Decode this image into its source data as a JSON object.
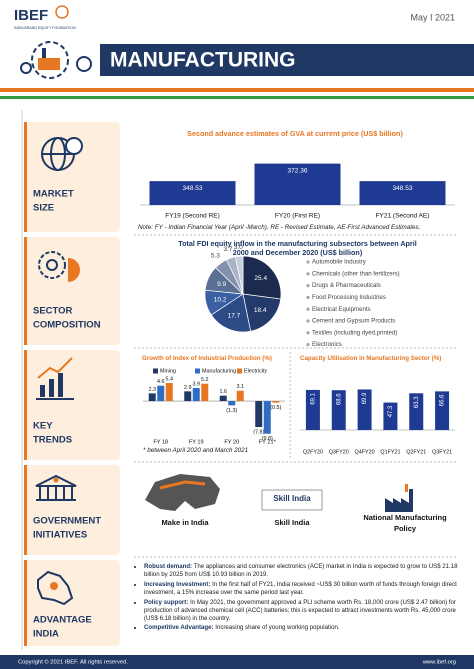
{
  "header": {
    "logo": "IBEF",
    "logo_sub": "INDIA BRAND EQUITY FOUNDATION",
    "date": "May I 2021",
    "title": "MANUFACTURING"
  },
  "sections": [
    {
      "label": [
        "MARKET",
        "SIZE"
      ]
    },
    {
      "label": [
        "SECTOR",
        "COMPOSITION"
      ]
    },
    {
      "label": [
        "KEY",
        "TRENDS"
      ]
    },
    {
      "label": [
        "GOVERNMENT",
        "INITIATIVES"
      ]
    },
    {
      "label": [
        "ADVANTAGE",
        "INDIA"
      ]
    }
  ],
  "chart_data": [
    {
      "type": "bar",
      "title": "Second advance estimates of GVA at current price (US$ billion)",
      "categories": [
        "FY19 (Second RE)",
        "FY20 (First RE)",
        "FY21 (Second AE)"
      ],
      "values": [
        348.53,
        372.36,
        348.53
      ],
      "color": "#1f3a93",
      "ylim": [
        316,
        380
      ],
      "note": "Note: FY - Indian Financial Year (April -March), RE - Revised Estimate, AE-First Advanced Estimates."
    },
    {
      "type": "pie",
      "title": "Total FDI equity inflow in the manufacturing subsectors between April 2000 and December 2020 (US$ billion)",
      "labels": [
        "Automobile Industry",
        "Chemicals (other than fertilizers)",
        "Drugs & Pharmaceuticals",
        "Food Processing Industries",
        "Electrical Equipments",
        "Cement and Gypsum Products",
        "Textiles (including dyed,printed)",
        "Electronics"
      ],
      "values": [
        25.4,
        18.4,
        17.7,
        10.2,
        9.9,
        5.3,
        3.7,
        3
      ],
      "value_labels": [
        "25.4",
        "18.4",
        "17.7",
        "10.2",
        "9.9",
        "5.3",
        "3.7",
        "3.0"
      ],
      "colors": [
        "#1b2a4e",
        "#233a6b",
        "#2c4a86",
        "#3a5fa3",
        "#5a6f95",
        "#8391ad",
        "#a9b3c8",
        "#c8cfdc"
      ]
    },
    {
      "type": "bar",
      "title": "Growth of Index of Industrial Production (%)",
      "categories": [
        "FY 18",
        "FY 19",
        "FY 20",
        "FY 21*"
      ],
      "series": [
        {
          "name": "Mining",
          "color": "#1f3864",
          "values": [
            2.3,
            2.9,
            1.6,
            -7.8
          ],
          "value_labels": [
            "2.3",
            "2.9",
            "1.6",
            "(7.8)"
          ]
        },
        {
          "name": "Manufacturing",
          "color": "#2f6dc4",
          "values": [
            4.6,
            3.9,
            -1.3,
            -9.8
          ],
          "value_labels": [
            "4.6",
            "3.9",
            "(1.3)",
            "(9.8)"
          ]
        },
        {
          "name": "Electricity",
          "color": "#e87722",
          "values": [
            5.4,
            5.2,
            3.1,
            -0.5
          ],
          "value_labels": [
            "5.4",
            "5.2",
            "3.1",
            "(0.5)"
          ]
        }
      ],
      "ylim": [
        -11,
        7
      ],
      "note": "* between April 2020 and March 2021"
    },
    {
      "type": "bar",
      "title": "Capacity Utilisation in Manufacturing Sector (%)",
      "categories": [
        "Q2FY20",
        "Q3FY20",
        "Q4FY20",
        "Q1FY21",
        "Q2FY21",
        "Q3FY21"
      ],
      "values": [
        69.1,
        68.6,
        69.9,
        47.3,
        63.3,
        66.6
      ],
      "color": "#1f3a93",
      "ylim": [
        0,
        75
      ]
    }
  ],
  "initiatives": [
    "Make in India",
    "Skill India",
    "National Manufacturing Policy"
  ],
  "skill_logo": "Skill India",
  "advantages": [
    {
      "head": "Robust demand:",
      "text": "The appliances and consumer electronics (ACE) market in India is expected to grow to US$ 21.18 billion by 2025 from US$ 10.93 billion in 2019."
    },
    {
      "head": "Increasing Investment:",
      "text": "In the first half of FY21, India received ~US$ 30 billion worth of funds through foreign direct investment, a 15% increase over the same period last year."
    },
    {
      "head": "Policy support:",
      "text": "In May 2021, the government approved a PLI scheme worth Rs. 18,000 crore (US$ 2.47 billion) for production of advanced chemical cell (ACC) batteries; this is expected to attract investments worth Rs. 45,000 crore (US$ 6.18 billion) in the country."
    },
    {
      "head": "Competitive Advantage:",
      "text": "Increasing share of young working population."
    }
  ],
  "footer": {
    "left": "Copyright © 2021 IBEF. All rights reserved.",
    "right": "www.ibef.org"
  }
}
